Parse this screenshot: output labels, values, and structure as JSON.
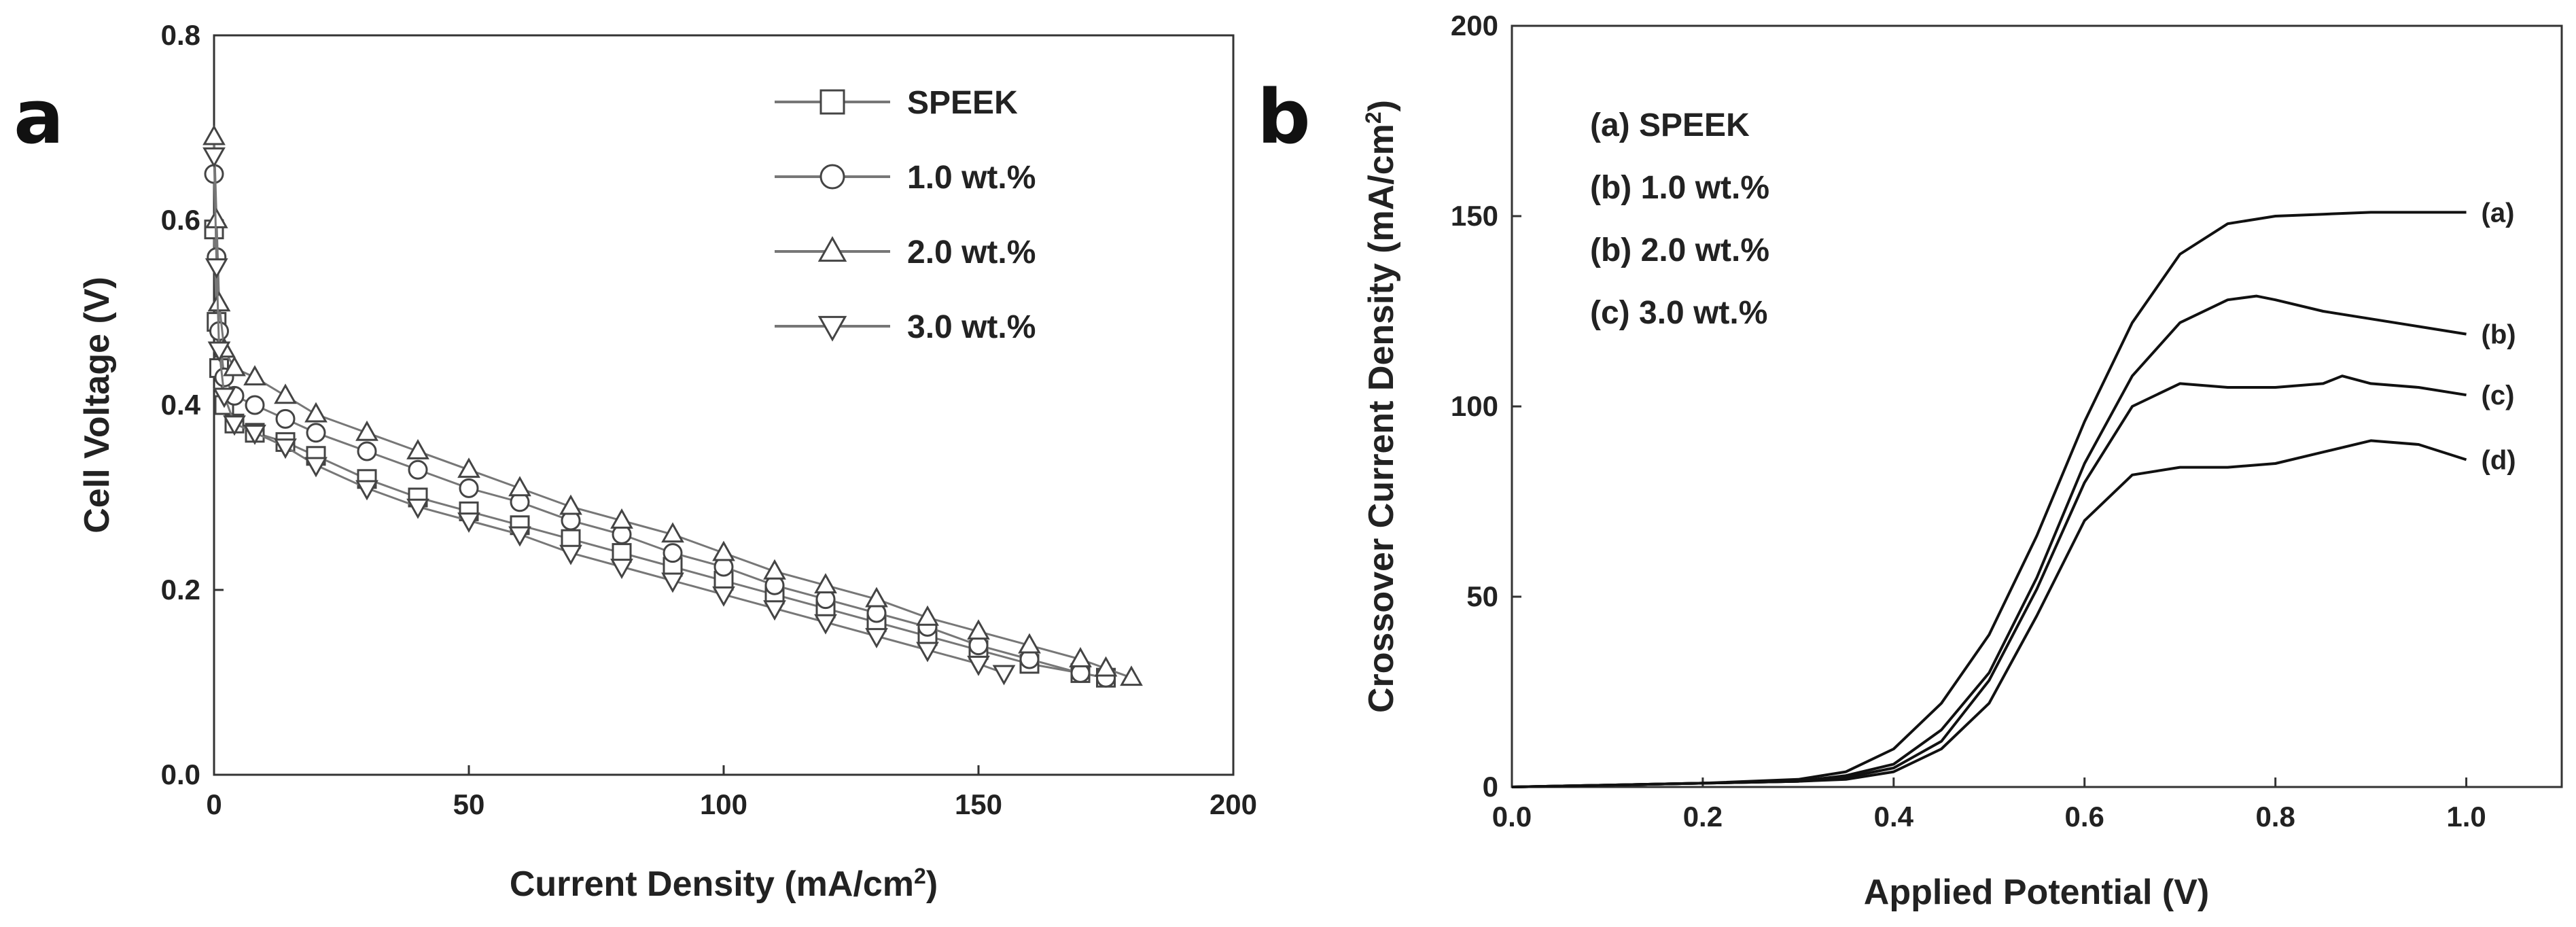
{
  "chart_data": [
    {
      "type": "scatter",
      "panel_label": "a",
      "xlabel": "Current Density (mA/cm",
      "xlabel_sup": "2",
      "xlabel_end": ")",
      "ylabel": "Cell Voltage (V)",
      "xlim": [
        0,
        200
      ],
      "ylim": [
        0.0,
        0.8
      ],
      "xticks": [
        0,
        50,
        100,
        150,
        200
      ],
      "xtick_labels": [
        "0",
        "50",
        "100",
        "150",
        "200"
      ],
      "yticks": [
        0.0,
        0.2,
        0.4,
        0.6,
        0.8
      ],
      "ytick_labels": [
        "0.0",
        "0.2",
        "0.4",
        "0.6",
        "0.8"
      ],
      "legend_position": "top-right",
      "series": [
        {
          "name": "SPEEK",
          "marker": "square",
          "x": [
            0,
            0.5,
            1,
            2,
            4,
            8,
            14,
            20,
            30,
            40,
            50,
            60,
            70,
            80,
            90,
            100,
            110,
            120,
            130,
            140,
            150,
            160,
            170,
            175
          ],
          "y": [
            0.59,
            0.49,
            0.44,
            0.4,
            0.38,
            0.37,
            0.36,
            0.345,
            0.32,
            0.3,
            0.285,
            0.27,
            0.255,
            0.24,
            0.225,
            0.21,
            0.195,
            0.18,
            0.165,
            0.15,
            0.135,
            0.12,
            0.11,
            0.105
          ]
        },
        {
          "name": "1.0 wt.%",
          "marker": "circle",
          "x": [
            0,
            0.5,
            1,
            2,
            4,
            8,
            14,
            20,
            30,
            40,
            50,
            60,
            70,
            80,
            90,
            100,
            110,
            120,
            130,
            140,
            150,
            160,
            170,
            175
          ],
          "y": [
            0.65,
            0.56,
            0.48,
            0.43,
            0.41,
            0.4,
            0.385,
            0.37,
            0.35,
            0.33,
            0.31,
            0.295,
            0.275,
            0.26,
            0.24,
            0.225,
            0.205,
            0.19,
            0.175,
            0.16,
            0.14,
            0.125,
            0.11,
            0.105
          ]
        },
        {
          "name": "2.0 wt.%",
          "marker": "triangle-up",
          "x": [
            0,
            0.5,
            1,
            2,
            4,
            8,
            14,
            20,
            30,
            40,
            50,
            60,
            70,
            80,
            90,
            100,
            110,
            120,
            130,
            140,
            150,
            160,
            170,
            175,
            180
          ],
          "y": [
            0.69,
            0.6,
            0.51,
            0.46,
            0.44,
            0.43,
            0.41,
            0.39,
            0.37,
            0.35,
            0.33,
            0.31,
            0.29,
            0.275,
            0.26,
            0.24,
            0.22,
            0.205,
            0.19,
            0.17,
            0.155,
            0.14,
            0.125,
            0.115,
            0.105
          ]
        },
        {
          "name": "3.0 wt.%",
          "marker": "triangle-down",
          "x": [
            0,
            0.5,
            1,
            2,
            4,
            8,
            14,
            20,
            30,
            40,
            50,
            60,
            70,
            80,
            90,
            100,
            110,
            120,
            130,
            140,
            150,
            155
          ],
          "y": [
            0.67,
            0.55,
            0.46,
            0.41,
            0.38,
            0.37,
            0.355,
            0.335,
            0.31,
            0.29,
            0.275,
            0.26,
            0.24,
            0.225,
            0.21,
            0.195,
            0.18,
            0.165,
            0.15,
            0.135,
            0.12,
            0.11
          ]
        }
      ]
    },
    {
      "type": "line",
      "panel_label": "b",
      "xlabel": "Applied Potential (V)",
      "ylabel": "Crossover Current Density (mA/cm",
      "ylabel_sup": "2",
      "ylabel_end": ")",
      "xlim": [
        0.0,
        1.1
      ],
      "ylim": [
        0,
        200
      ],
      "xticks": [
        0.0,
        0.2,
        0.4,
        0.6,
        0.8,
        1.0
      ],
      "xtick_labels": [
        "0.0",
        "0.2",
        "0.4",
        "0.6",
        "0.8",
        "1.0"
      ],
      "yticks": [
        0,
        50,
        100,
        150,
        200
      ],
      "ytick_labels": [
        "0",
        "50",
        "100",
        "150",
        "200"
      ],
      "legend_entries": [
        "(a) SPEEK",
        "(b) 1.0 wt.%",
        "(b) 2.0 wt.%",
        "(c) 3.0 wt.%"
      ],
      "legend_position": "top-left",
      "series": [
        {
          "name": "(a)",
          "x": [
            0.0,
            0.1,
            0.2,
            0.3,
            0.35,
            0.4,
            0.45,
            0.5,
            0.55,
            0.6,
            0.65,
            0.7,
            0.75,
            0.8,
            0.85,
            0.9,
            0.95,
            1.0
          ],
          "y": [
            0,
            0.5,
            1,
            2,
            4,
            10,
            22,
            40,
            66,
            96,
            122,
            140,
            148,
            150,
            150.5,
            151,
            151,
            151
          ]
        },
        {
          "name": "(b)",
          "x": [
            0.0,
            0.1,
            0.2,
            0.3,
            0.35,
            0.4,
            0.45,
            0.5,
            0.55,
            0.6,
            0.65,
            0.7,
            0.75,
            0.78,
            0.8,
            0.85,
            0.9,
            0.95,
            1.0
          ],
          "y": [
            0,
            0.5,
            1,
            1.5,
            3,
            6,
            15,
            30,
            55,
            85,
            108,
            122,
            128,
            129,
            128,
            125,
            123,
            121,
            119
          ]
        },
        {
          "name": "(c)",
          "x": [
            0.0,
            0.1,
            0.2,
            0.3,
            0.35,
            0.4,
            0.45,
            0.5,
            0.55,
            0.6,
            0.65,
            0.7,
            0.75,
            0.8,
            0.85,
            0.87,
            0.9,
            0.95,
            1.0
          ],
          "y": [
            0,
            0.5,
            1,
            1.5,
            2.5,
            5,
            12,
            28,
            52,
            80,
            100,
            106,
            105,
            105,
            106,
            108,
            106,
            105,
            103
          ]
        },
        {
          "name": "(d)",
          "x": [
            0.0,
            0.1,
            0.2,
            0.3,
            0.35,
            0.4,
            0.45,
            0.5,
            0.55,
            0.6,
            0.65,
            0.7,
            0.75,
            0.8,
            0.85,
            0.9,
            0.95,
            1.0
          ],
          "y": [
            0,
            0.5,
            1,
            1.5,
            2,
            4,
            10,
            22,
            45,
            70,
            82,
            84,
            84,
            85,
            88,
            91,
            90,
            86
          ]
        }
      ]
    }
  ]
}
